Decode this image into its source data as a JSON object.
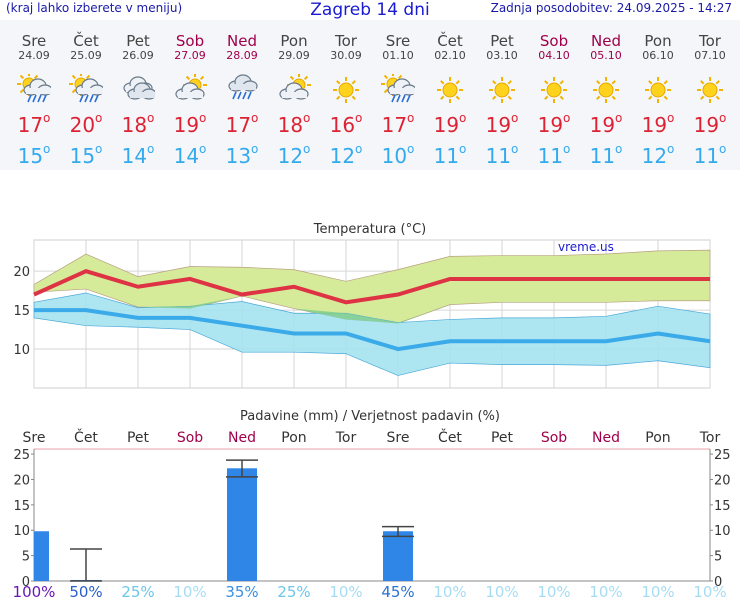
{
  "header": {
    "left_note": "(kraj lahko izberete v meniju)",
    "title": "Zagreb 14 dni",
    "updated": "Zadnja posodobitev: 24.09.2025 - 14:27"
  },
  "forecast": [
    {
      "day": "Sre",
      "date": "24.09",
      "weekend": false,
      "icon": "sun-cloud-rain-icon",
      "max": "17",
      "min": "15"
    },
    {
      "day": "Čet",
      "date": "25.09",
      "weekend": false,
      "icon": "sun-cloud-rain-icon",
      "max": "20",
      "min": "15"
    },
    {
      "day": "Pet",
      "date": "26.09",
      "weekend": false,
      "icon": "cloud-icon",
      "max": "18",
      "min": "14"
    },
    {
      "day": "Sob",
      "date": "27.09",
      "weekend": true,
      "icon": "sun-cloud-icon",
      "max": "19",
      "min": "14"
    },
    {
      "day": "Ned",
      "date": "28.09",
      "weekend": true,
      "icon": "cloud-rain-icon",
      "max": "17",
      "min": "13"
    },
    {
      "day": "Pon",
      "date": "29.09",
      "weekend": false,
      "icon": "sun-cloud-icon",
      "max": "18",
      "min": "12"
    },
    {
      "day": "Tor",
      "date": "30.09",
      "weekend": false,
      "icon": "sun-icon",
      "max": "16",
      "min": "12"
    },
    {
      "day": "Sre",
      "date": "01.10",
      "weekend": false,
      "icon": "sun-cloud-rain-icon",
      "max": "17",
      "min": "10"
    },
    {
      "day": "Čet",
      "date": "02.10",
      "weekend": false,
      "icon": "sun-icon",
      "max": "19",
      "min": "11"
    },
    {
      "day": "Pet",
      "date": "03.10",
      "weekend": false,
      "icon": "sun-icon",
      "max": "19",
      "min": "11"
    },
    {
      "day": "Sob",
      "date": "04.10",
      "weekend": true,
      "icon": "sun-icon",
      "max": "19",
      "min": "11"
    },
    {
      "day": "Ned",
      "date": "05.10",
      "weekend": true,
      "icon": "sun-icon",
      "max": "19",
      "min": "11"
    },
    {
      "day": "Pon",
      "date": "06.10",
      "weekend": false,
      "icon": "sun-icon",
      "max": "19",
      "min": "12"
    },
    {
      "day": "Tor",
      "date": "07.10",
      "weekend": false,
      "icon": "sun-icon",
      "max": "19",
      "min": "11"
    }
  ],
  "colors": {
    "max_line": "#dd3344",
    "min_line": "#3aaae8",
    "max_band": "#d6eb9a",
    "min_band": "#a4e2f0",
    "overlap": "#80cc8a",
    "bar": "#2f86e6",
    "weekend": "#a0004a",
    "grid": "#d6d6d6"
  },
  "chart_data": [
    {
      "type": "line",
      "title": "Temperatura (°C)",
      "watermark": "vreme.us",
      "ylim": [
        5,
        24
      ],
      "yticks": [
        10,
        15,
        20
      ],
      "x": [
        "Sre",
        "Čet",
        "Pet",
        "Sob",
        "Ned",
        "Pon",
        "Tor",
        "Sre",
        "Čet",
        "Pet",
        "Sob",
        "Ned",
        "Pon",
        "Tor"
      ],
      "series": [
        {
          "name": "max",
          "values": [
            17,
            20,
            18,
            19,
            17,
            18,
            16,
            17,
            19,
            19,
            19,
            19,
            19,
            19
          ],
          "band_low": [
            17.3,
            17.7,
            15.4,
            15.2,
            16.8,
            15.2,
            13.8,
            13.3,
            15.7,
            16.0,
            16.0,
            16.0,
            16.2,
            16.2
          ],
          "band_high": [
            18.3,
            22.2,
            19.3,
            20.6,
            20.5,
            20.2,
            18.7,
            20.2,
            21.9,
            22.0,
            22.0,
            22.2,
            22.6,
            22.7
          ]
        },
        {
          "name": "min",
          "values": [
            15,
            15,
            14,
            14,
            13,
            12,
            12,
            10,
            11,
            11,
            11,
            11,
            12,
            11
          ],
          "band_low": [
            14.0,
            13.0,
            12.8,
            12.5,
            9.6,
            9.6,
            9.4,
            6.6,
            8.2,
            8.0,
            8.0,
            7.9,
            8.5,
            7.6
          ],
          "band_high": [
            16.0,
            17.2,
            15.3,
            15.5,
            16.1,
            14.6,
            14.6,
            13.4,
            13.8,
            14.0,
            14.0,
            14.2,
            15.5,
            14.5
          ]
        }
      ]
    },
    {
      "type": "bar",
      "title": "Padavine (mm) / Verjetnost padavin (%)",
      "ylim": [
        0,
        26
      ],
      "yticks": [
        0,
        5,
        10,
        15,
        20,
        25
      ],
      "categories": [
        "Sre",
        "Čet",
        "Pet",
        "Sob",
        "Ned",
        "Pon",
        "Tor",
        "Sre",
        "Čet",
        "Pet",
        "Sob",
        "Ned",
        "Pon",
        "Tor"
      ],
      "values": [
        9.8,
        0.2,
        0,
        0,
        22.2,
        0,
        0,
        9.8,
        0,
        0,
        0,
        0,
        0,
        0
      ],
      "error_low": [
        null,
        0,
        null,
        null,
        20.5,
        null,
        null,
        8.8,
        null,
        null,
        null,
        null,
        null,
        null
      ],
      "error_high": [
        null,
        6.3,
        null,
        null,
        23.8,
        null,
        null,
        10.7,
        null,
        null,
        null,
        null,
        null,
        null
      ],
      "probability": [
        "100%",
        "50%",
        "25%",
        "10%",
        "35%",
        "25%",
        "10%",
        "45%",
        "10%",
        "10%",
        "10%",
        "10%",
        "10%",
        "10%"
      ],
      "probability_colors": [
        "#6a16b8",
        "#2860cc",
        "#6cc6ea",
        "#a6dcf2",
        "#3a8fe0",
        "#6cc6ea",
        "#a6dcf2",
        "#2a72d4",
        "#a6dcf2",
        "#a6dcf2",
        "#a6dcf2",
        "#a6dcf2",
        "#a6dcf2",
        "#a6dcf2"
      ]
    }
  ]
}
